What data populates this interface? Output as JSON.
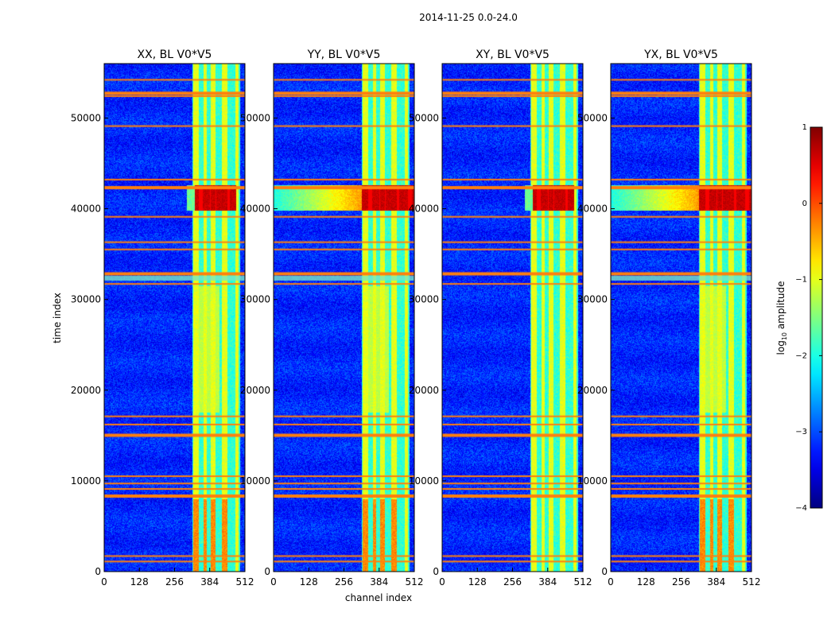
{
  "figure_title": "2014-11-25 0.0-24.0",
  "chart_data": {
    "type": "heatmap",
    "suptitle": "2014-11-25 0.0-24.0",
    "xlabel": "channel index",
    "ylabel": "time index",
    "xlim": [
      0,
      512
    ],
    "ylim": [
      0,
      56000
    ],
    "xticks": [
      0,
      128,
      256,
      384,
      512
    ],
    "yticks": [
      0,
      10000,
      20000,
      30000,
      40000,
      50000
    ],
    "panels": [
      {
        "title": "XX, BL V0*V5",
        "pol": "XX",
        "burst_channels": [
          330,
          480
        ],
        "burst_time": [
          39800,
          42600
        ],
        "burst_extends_left": false,
        "low_burst": true
      },
      {
        "title": "YY, BL V0*V5",
        "pol": "YY",
        "burst_channels": [
          320,
          512
        ],
        "burst_time": [
          39800,
          42600
        ],
        "burst_extends_left": true,
        "low_burst": true
      },
      {
        "title": "XY, BL V0*V5",
        "pol": "XY",
        "burst_channels": [
          330,
          480
        ],
        "burst_time": [
          39800,
          42600
        ],
        "burst_extends_left": false,
        "low_burst": false
      },
      {
        "title": "YX, BL V0*V5",
        "pol": "YX",
        "burst_channels": [
          320,
          512
        ],
        "burst_time": [
          39800,
          42600
        ],
        "burst_extends_left": true,
        "low_burst": true
      }
    ],
    "flagged_time_rows": [
      1200,
      1800,
      8500,
      9200,
      9800,
      10600,
      15200,
      16300,
      17200,
      31800,
      33000,
      35600,
      36400,
      39200,
      42500,
      43300,
      49200,
      52500,
      52900,
      54300
    ],
    "bright_channel_bands": [
      [
        325,
        345
      ],
      [
        362,
        372
      ],
      [
        388,
        405
      ],
      [
        428,
        448
      ],
      [
        478,
        490
      ]
    ],
    "colorbar": {
      "label": "log10 amplitude",
      "label_main": "log",
      "label_sub": "10",
      "label_rest": " amplitude",
      "range": [
        -4,
        1
      ],
      "ticks": [
        1,
        0,
        -1,
        -2,
        -3,
        -4
      ],
      "tick_labels": [
        "1",
        "0",
        "−1",
        "−2",
        "−3",
        "−4"
      ],
      "colormap": "jet"
    }
  }
}
